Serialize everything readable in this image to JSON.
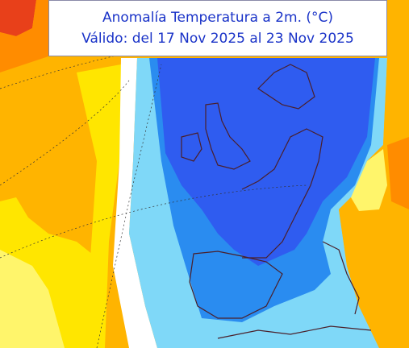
{
  "title": {
    "line1": "Anomalía Temperatura a 2m. (°C)",
    "line2": "Válido: del 17 Nov 2025 al 23 Nov 2025"
  }
}
